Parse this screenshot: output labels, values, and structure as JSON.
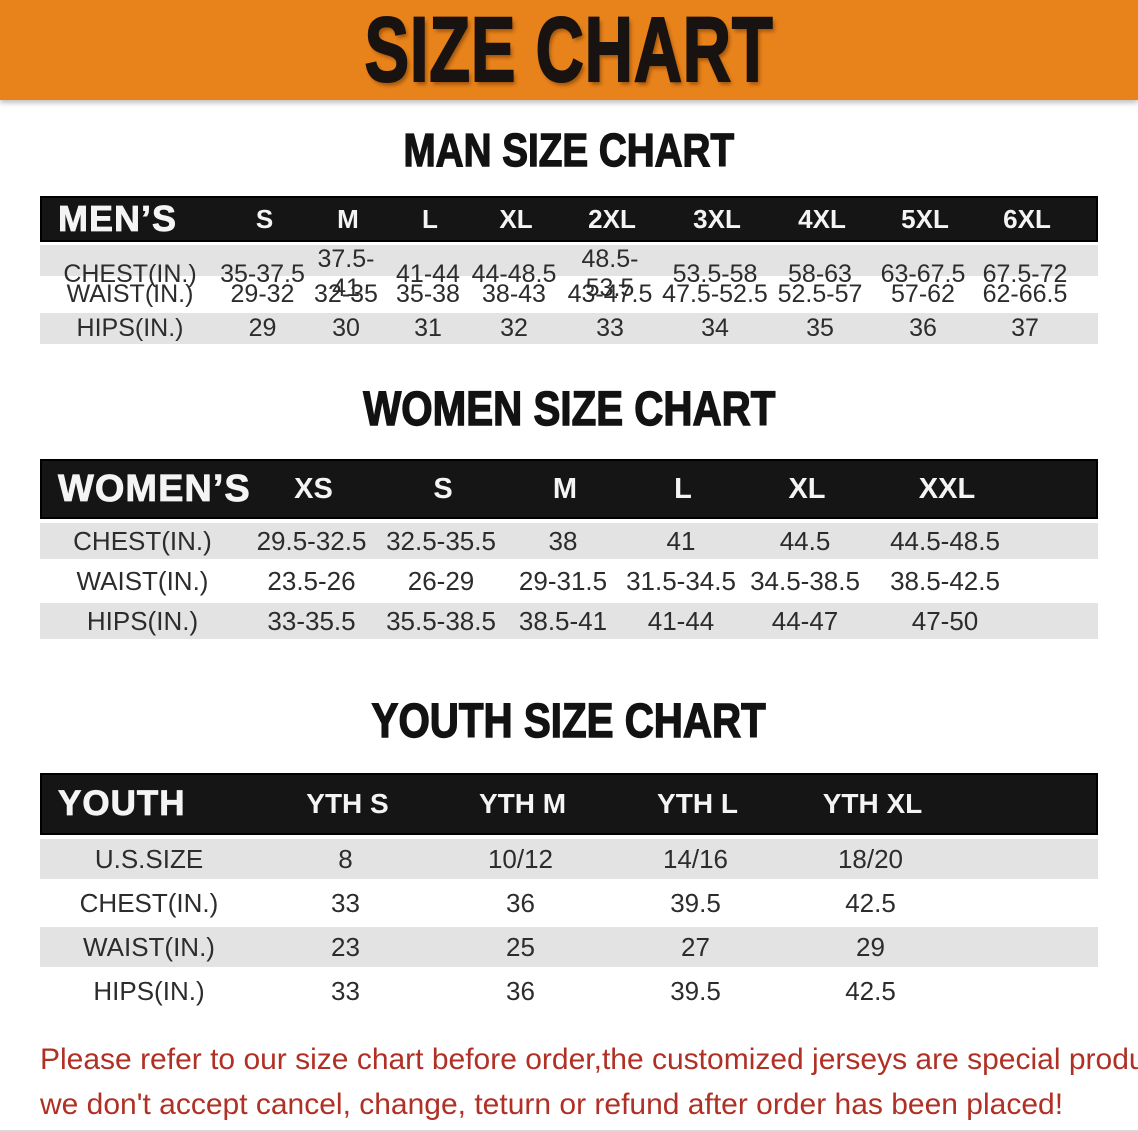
{
  "banner": {
    "title": "SIZE CHART"
  },
  "men": {
    "heading": "MAN SIZE CHART",
    "label": "MEN’S",
    "columns": [
      "S",
      "M",
      "L",
      "XL",
      "2XL",
      "3XL",
      "4XL",
      "5XL",
      "6XL"
    ],
    "rows": [
      {
        "label": "CHEST(IN.)",
        "values": [
          "35-37.5",
          "37.5-41",
          "41-44",
          "44-48.5",
          "48.5-53.5",
          "53.5-58",
          "58-63",
          "63-67.5",
          "67.5-72"
        ]
      },
      {
        "label": "WAIST(IN.)",
        "values": [
          "29-32",
          "32-35",
          "35-38",
          "38-43",
          "43-47.5",
          "47.5-52.5",
          "52.5-57",
          "57-62",
          "62-66.5"
        ]
      },
      {
        "label": "HIPS(IN.)",
        "values": [
          "29",
          "30",
          "31",
          "32",
          "33",
          "34",
          "35",
          "36",
          "37"
        ]
      }
    ]
  },
  "women": {
    "heading": "WOMEN SIZE CHART",
    "label": "WOMEN’S",
    "columns": [
      "XS",
      "S",
      "M",
      "L",
      "XL",
      "XXL"
    ],
    "rows": [
      {
        "label": "CHEST(IN.)",
        "values": [
          "29.5-32.5",
          "32.5-35.5",
          "38",
          "41",
          "44.5",
          "44.5-48.5"
        ]
      },
      {
        "label": "WAIST(IN.)",
        "values": [
          "23.5-26",
          "26-29",
          "29-31.5",
          "31.5-34.5",
          "34.5-38.5",
          "38.5-42.5"
        ]
      },
      {
        "label": "HIPS(IN.)",
        "values": [
          "33-35.5",
          "35.5-38.5",
          "38.5-41",
          "41-44",
          "44-47",
          "47-50"
        ]
      }
    ]
  },
  "youth": {
    "heading": "YOUTH SIZE CHART",
    "label": "YOUTH",
    "columns": [
      "YTH S",
      "YTH M",
      "YTH L",
      "YTH XL"
    ],
    "rows": [
      {
        "label": "U.S.SIZE",
        "values": [
          "8",
          "10/12",
          "14/16",
          "18/20"
        ]
      },
      {
        "label": "CHEST(IN.)",
        "values": [
          "33",
          "36",
          "39.5",
          "42.5"
        ]
      },
      {
        "label": "WAIST(IN.)",
        "values": [
          "23",
          "25",
          "27",
          "29"
        ]
      },
      {
        "label": "HIPS(IN.)",
        "values": [
          "33",
          "36",
          "39.5",
          "42.5"
        ]
      }
    ]
  },
  "footer": {
    "line1": "Please refer to our size chart before order,the customized jerseys are special products,",
    "line2": "we don't accept cancel, change, teturn or refund after order has been placed!"
  },
  "colors": {
    "banner_orange": "#E8821A",
    "header_black": "#151515",
    "row_gray": "#E3E3E4",
    "disclaimer_red": "#B03025"
  }
}
